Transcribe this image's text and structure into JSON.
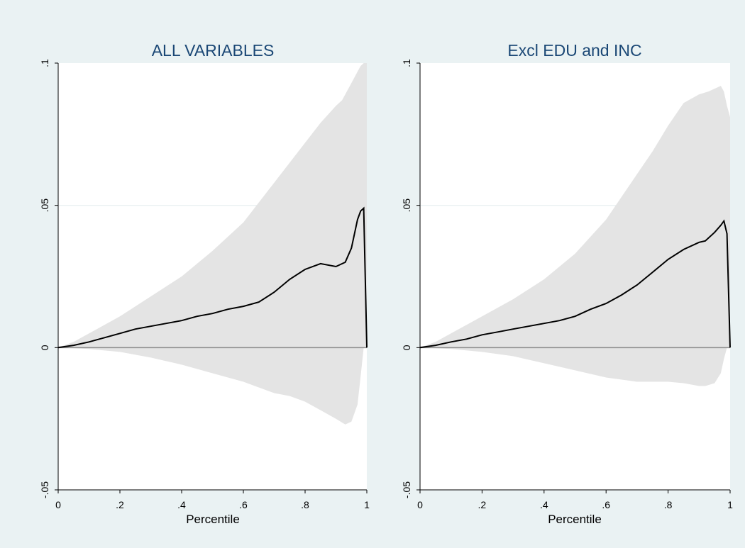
{
  "colors": {
    "background": "#eaf2f3",
    "plot_background": "#ffffff",
    "band_fill": "#e4e4e4",
    "line": "#000000",
    "zero_line": "#8c8c8c",
    "title": "#1a4775"
  },
  "chart_data": [
    {
      "type": "area",
      "title": "ALL VARIABLES",
      "xlabel": "Percentile",
      "ylabel": "",
      "xlim": [
        0,
        1
      ],
      "ylim": [
        -0.05,
        0.1
      ],
      "x_ticks": [
        "0",
        ".2",
        ".4",
        ".6",
        ".8",
        "1"
      ],
      "y_ticks": [
        "-.05",
        "0",
        ".05",
        ".1"
      ],
      "grid": "horizontal",
      "series": [
        {
          "role": "estimate",
          "x": [
            0,
            0.05,
            0.1,
            0.15,
            0.2,
            0.25,
            0.3,
            0.35,
            0.4,
            0.45,
            0.5,
            0.55,
            0.6,
            0.65,
            0.7,
            0.75,
            0.8,
            0.85,
            0.9,
            0.93,
            0.95,
            0.97,
            0.98,
            0.99,
            1.0
          ],
          "y": [
            0,
            0.0008,
            0.002,
            0.0035,
            0.005,
            0.0065,
            0.0075,
            0.0085,
            0.0095,
            0.011,
            0.012,
            0.0135,
            0.0145,
            0.016,
            0.0195,
            0.024,
            0.0275,
            0.0295,
            0.0285,
            0.03,
            0.035,
            0.045,
            0.048,
            0.049,
            0
          ]
        },
        {
          "role": "upper_bound",
          "x": [
            0,
            0.05,
            0.1,
            0.2,
            0.3,
            0.4,
            0.5,
            0.6,
            0.7,
            0.8,
            0.85,
            0.9,
            0.92,
            0.95,
            0.97,
            0.98,
            0.99,
            1.0
          ],
          "y": [
            0,
            0.002,
            0.005,
            0.011,
            0.018,
            0.025,
            0.034,
            0.044,
            0.058,
            0.072,
            0.079,
            0.085,
            0.087,
            0.093,
            0.097,
            0.099,
            0.1,
            0.1
          ]
        },
        {
          "role": "lower_bound",
          "x": [
            0,
            0.1,
            0.2,
            0.3,
            0.4,
            0.5,
            0.6,
            0.7,
            0.75,
            0.8,
            0.85,
            0.9,
            0.93,
            0.95,
            0.97,
            0.98,
            0.99,
            1.0
          ],
          "y": [
            0,
            -0.0005,
            -0.0015,
            -0.0035,
            -0.006,
            -0.009,
            -0.012,
            -0.016,
            -0.017,
            -0.019,
            -0.022,
            -0.025,
            -0.027,
            -0.026,
            -0.02,
            -0.01,
            0,
            0
          ]
        }
      ]
    },
    {
      "type": "area",
      "title": "Excl EDU and INC",
      "xlabel": "Percentile",
      "ylabel": "",
      "xlim": [
        0,
        1
      ],
      "ylim": [
        -0.05,
        0.1
      ],
      "x_ticks": [
        "0",
        ".2",
        ".4",
        ".6",
        ".8",
        "1"
      ],
      "y_ticks": [
        "-.05",
        "0",
        ".05",
        ".1"
      ],
      "grid": "horizontal",
      "series": [
        {
          "role": "estimate",
          "x": [
            0,
            0.05,
            0.1,
            0.15,
            0.2,
            0.25,
            0.3,
            0.35,
            0.4,
            0.45,
            0.5,
            0.55,
            0.6,
            0.65,
            0.7,
            0.75,
            0.8,
            0.85,
            0.9,
            0.92,
            0.95,
            0.97,
            0.98,
            0.99,
            1.0
          ],
          "y": [
            0,
            0.0008,
            0.002,
            0.003,
            0.0045,
            0.0055,
            0.0065,
            0.0075,
            0.0085,
            0.0095,
            0.011,
            0.0135,
            0.0155,
            0.0185,
            0.022,
            0.0265,
            0.031,
            0.0345,
            0.037,
            0.0375,
            0.0405,
            0.043,
            0.0445,
            0.04,
            0
          ]
        },
        {
          "role": "upper_bound",
          "x": [
            0,
            0.05,
            0.1,
            0.2,
            0.3,
            0.4,
            0.5,
            0.6,
            0.7,
            0.75,
            0.8,
            0.85,
            0.9,
            0.93,
            0.95,
            0.97,
            0.98,
            0.99,
            1.0
          ],
          "y": [
            0,
            0.002,
            0.005,
            0.011,
            0.017,
            0.024,
            0.033,
            0.045,
            0.061,
            0.069,
            0.078,
            0.086,
            0.089,
            0.09,
            0.091,
            0.092,
            0.09,
            0.085,
            0.081
          ]
        },
        {
          "role": "lower_bound",
          "x": [
            0,
            0.1,
            0.2,
            0.3,
            0.4,
            0.5,
            0.6,
            0.7,
            0.75,
            0.8,
            0.85,
            0.9,
            0.92,
            0.95,
            0.97,
            0.98,
            0.99,
            1.0
          ],
          "y": [
            0,
            -0.0005,
            -0.0015,
            -0.003,
            -0.0055,
            -0.008,
            -0.0105,
            -0.012,
            -0.012,
            -0.012,
            -0.0125,
            -0.0135,
            -0.0135,
            -0.0125,
            -0.009,
            -0.004,
            0,
            0
          ]
        }
      ]
    }
  ]
}
